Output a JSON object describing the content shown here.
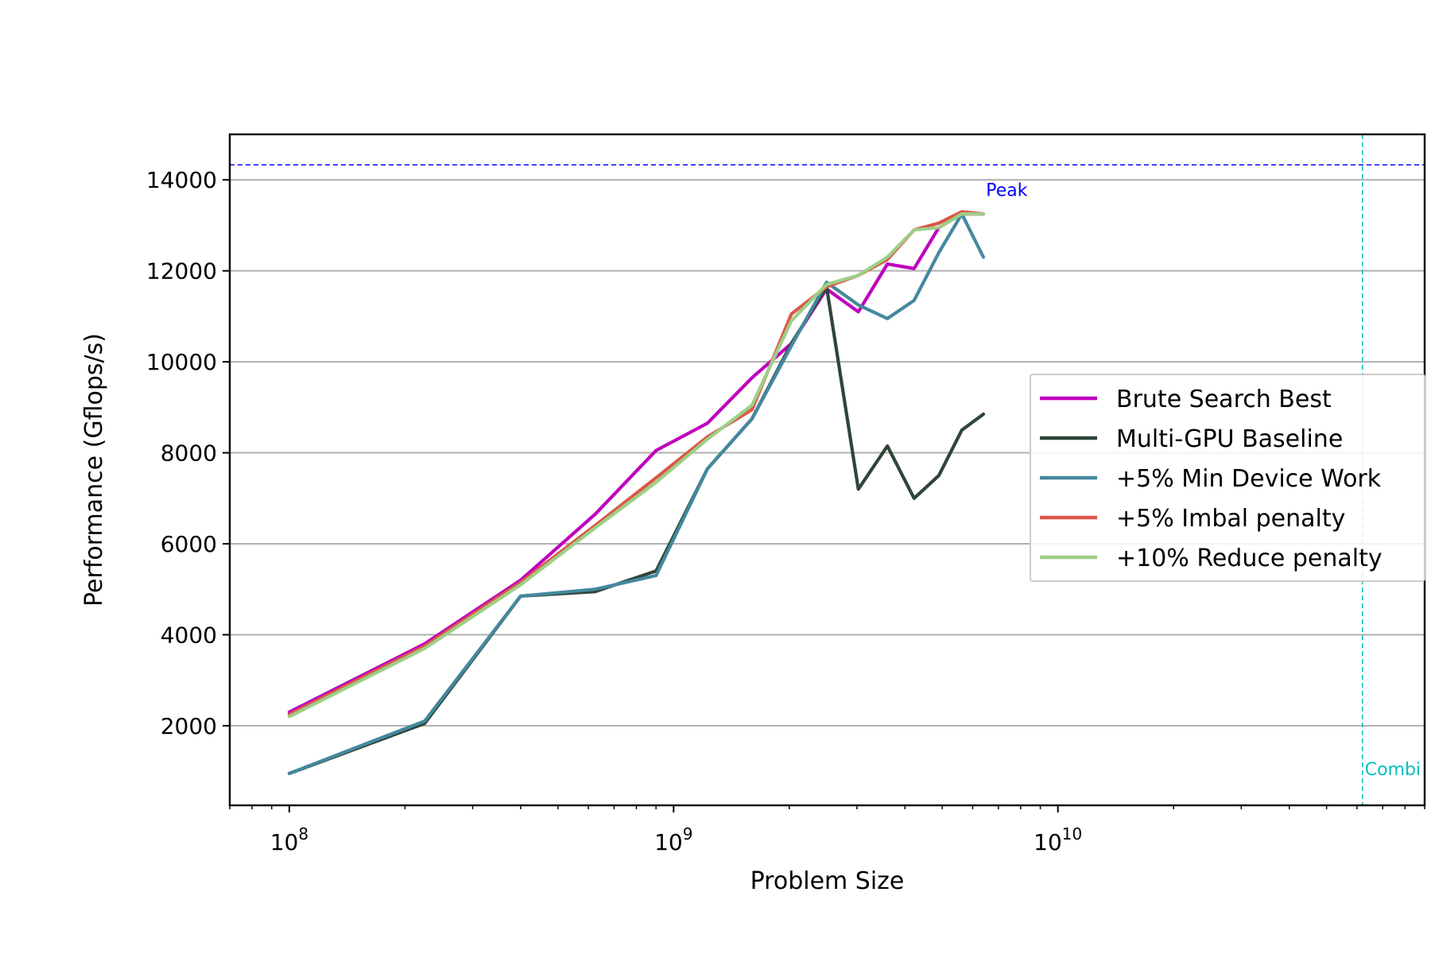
{
  "chart_data": {
    "type": "line",
    "title": "",
    "xlabel": "Problem Size",
    "ylabel": "Performance (Gflops/s)",
    "xscale": "log",
    "xlim": [
      70000000,
      90000000000
    ],
    "ylim": [
      250,
      15000
    ],
    "grid": "horizontal",
    "legend_position": "center-right",
    "x_ticks": [
      {
        "value": 100000000,
        "base": "10",
        "exp": "8"
      },
      {
        "value": 1000000000,
        "base": "10",
        "exp": "9"
      },
      {
        "value": 10000000000,
        "base": "10",
        "exp": "10"
      }
    ],
    "y_ticks": [
      2000,
      4000,
      6000,
      8000,
      10000,
      12000,
      14000
    ],
    "x": [
      100000000,
      225000000,
      400000000,
      625000000,
      900000000,
      1225000000,
      1600000000,
      2025000000,
      2500000000,
      3025000000,
      3600000000,
      4225000000,
      4900000000,
      5625000000,
      6400000000
    ],
    "series": [
      {
        "name": "Brute Search Best",
        "color": "#bf00bf",
        "values": [
          2300,
          3800,
          5200,
          6650,
          8050,
          8650,
          9650,
          10400,
          11600,
          11100,
          12150,
          12050,
          12950,
          13250,
          13250
        ]
      },
      {
        "name": "Multi-GPU Baseline",
        "color": "#2f4538",
        "values": [
          950,
          2050,
          4850,
          4950,
          5400,
          7650,
          8750,
          10400,
          11650,
          7200,
          8150,
          7000,
          7500,
          8500,
          8850
        ]
      },
      {
        "name": "+5% Min Device Work",
        "color": "#44889f",
        "values": [
          950,
          2100,
          4850,
          5000,
          5300,
          7650,
          8750,
          10350,
          11750,
          11250,
          10950,
          11350,
          12400,
          13250,
          12300
        ]
      },
      {
        "name": "+5% Imbal penalty",
        "color": "#dc5648",
        "values": [
          2250,
          3750,
          5150,
          6400,
          7450,
          8350,
          8950,
          11050,
          11650,
          11900,
          12250,
          12900,
          13050,
          13300,
          13250
        ]
      },
      {
        "name": "+10% Reduce penalty",
        "color": "#9dcf85",
        "values": [
          2200,
          3700,
          5100,
          6350,
          7350,
          8300,
          9050,
          10900,
          11700,
          11900,
          12300,
          12900,
          12950,
          13250,
          13250
        ]
      }
    ],
    "reference_lines": [
      {
        "orientation": "horizontal",
        "value": 14330,
        "label": "Peak",
        "color": "#0000ff"
      },
      {
        "orientation": "vertical",
        "value": 62000000000,
        "label": "Combi",
        "color": "#00bfbf"
      }
    ]
  }
}
